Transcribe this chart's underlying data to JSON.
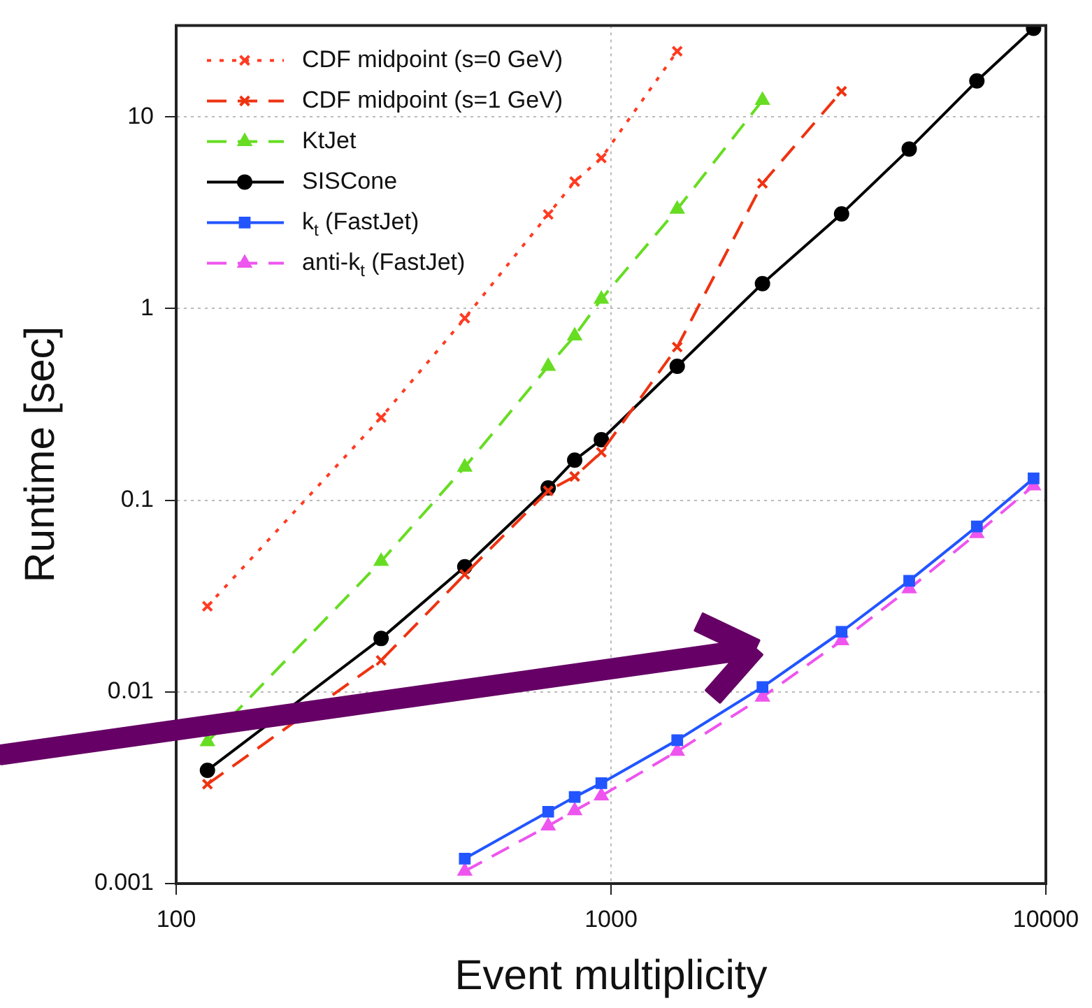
{
  "chart_data": {
    "type": "line",
    "xlabel": "Event multiplicity",
    "ylabel": "Runtime [sec]",
    "xlim": [
      100,
      10000
    ],
    "ylim": [
      0.001,
      30
    ],
    "xticks": [
      100,
      1000,
      10000
    ],
    "yticks": [
      0.001,
      0.01,
      0.1,
      1,
      10
    ],
    "log": "xy",
    "grid": true,
    "legend": "top left",
    "series": [
      {
        "name": "CDF midpoint (s=0 GeV)",
        "color": "#ff3b22",
        "line_style": "dotted",
        "marker": "cross",
        "x": [
          118,
          296,
          461,
          717,
          825,
          950,
          1420
        ],
        "values": [
          0.028,
          0.27,
          0.89,
          3.1,
          4.6,
          6.1,
          22
        ]
      },
      {
        "name": "CDF midpoint (s=1 GeV)",
        "color": "#ee3311",
        "line_style": "dashed",
        "marker": "cross",
        "x": [
          118,
          296,
          461,
          717,
          825,
          950,
          1420,
          2230,
          3390
        ],
        "values": [
          0.0033,
          0.0146,
          0.041,
          0.112,
          0.133,
          0.178,
          0.63,
          4.5,
          13.6
        ]
      },
      {
        "name": "KtJet",
        "color": "#66dd22",
        "line_style": "dashed",
        "marker": "triangle",
        "x": [
          118,
          296,
          461,
          717,
          825,
          950,
          1420,
          2230
        ],
        "values": [
          0.0055,
          0.048,
          0.149,
          0.5,
          0.72,
          1.12,
          3.3,
          12.2
        ]
      },
      {
        "name": "SISCone",
        "color": "#000000",
        "line_style": "solid",
        "marker": "circle",
        "x": [
          118,
          296,
          461,
          717,
          825,
          950,
          1420,
          2230,
          3390,
          4850,
          6940,
          9370
        ],
        "values": [
          0.0039,
          0.019,
          0.045,
          0.116,
          0.162,
          0.207,
          0.5,
          1.35,
          3.12,
          6.8,
          15.4,
          29
        ]
      },
      {
        "name": "k$_{t}$ (FastJet)",
        "color": "#2255ff",
        "line_style": "solid",
        "marker": "square",
        "x": [
          461,
          717,
          825,
          950,
          1420,
          2230,
          3390,
          4850,
          6940,
          9370
        ],
        "values": [
          0.00135,
          0.00237,
          0.00283,
          0.00334,
          0.0056,
          0.0106,
          0.0206,
          0.038,
          0.073,
          0.13
        ]
      },
      {
        "name": "anti-k$_{t}$ (FastJet)",
        "color": "#ee55ee",
        "line_style": "dashed",
        "marker": "triangle",
        "x": [
          461,
          717,
          825,
          950,
          1420,
          2230,
          3390,
          4850,
          6940,
          9370
        ],
        "values": [
          0.00116,
          0.002,
          0.0024,
          0.00287,
          0.0049,
          0.0094,
          0.0185,
          0.0345,
          0.067,
          0.119
        ]
      }
    ]
  }
}
